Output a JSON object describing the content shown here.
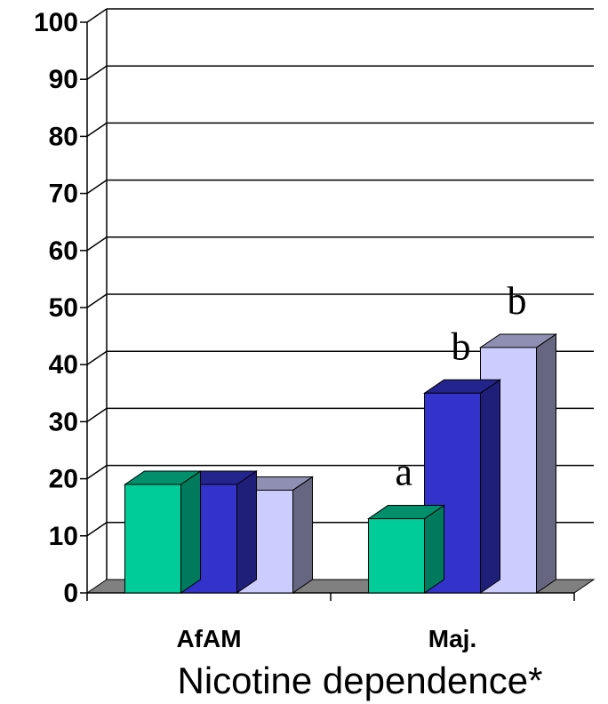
{
  "chart_data": {
    "type": "bar",
    "categories": [
      "AfAM",
      "Maj."
    ],
    "series": [
      {
        "values": [
          19,
          13
        ],
        "color": "#00cc99"
      },
      {
        "values": [
          19,
          35
        ],
        "color": "#3333cc"
      },
      {
        "values": [
          18,
          43
        ],
        "color": "#ccccff"
      }
    ],
    "annotations": [
      {
        "category": "Maj.",
        "series": 0,
        "text": "a"
      },
      {
        "category": "Maj.",
        "series": 1,
        "text": "b"
      },
      {
        "category": "Maj.",
        "series": 2,
        "text": "b"
      }
    ],
    "xlabel": "Nicotine dependence*",
    "ylabel": "",
    "ylim": [
      0,
      100
    ],
    "yticks": [
      0,
      10,
      20,
      30,
      40,
      50,
      60,
      70,
      80,
      90,
      100
    ],
    "grid": true,
    "style": "3d"
  }
}
